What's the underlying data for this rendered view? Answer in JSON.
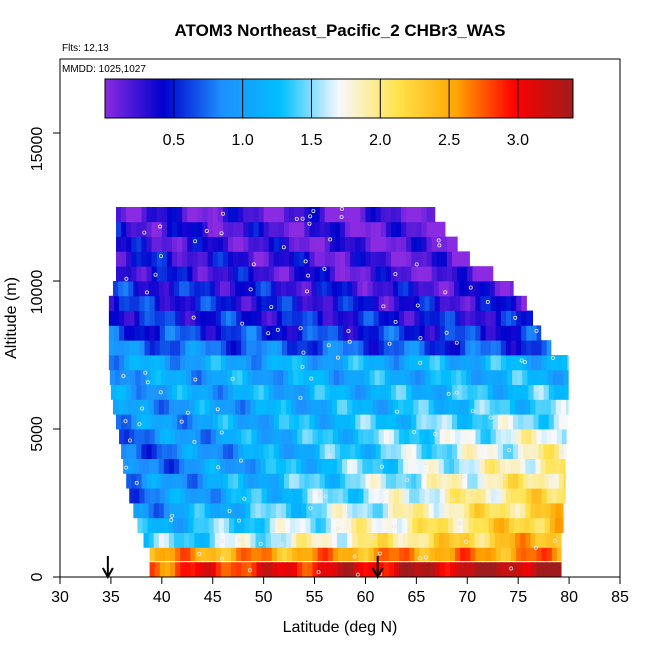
{
  "chart_data": {
    "type": "heatmap",
    "title": "ATOM3 Northeast_Pacific_2 CHBr3_WAS",
    "flights_label": "Flts: 12,13",
    "dates_label": "MMDD: 1025,1027",
    "xlabel": "Latitude (deg N)",
    "ylabel": "Altitude (m)",
    "xlim": [
      30,
      85
    ],
    "ylim": [
      0,
      17500
    ],
    "x_ticks": [
      "30",
      "35",
      "40",
      "45",
      "50",
      "55",
      "60",
      "65",
      "70",
      "75",
      "80",
      "85"
    ],
    "y_ticks": [
      "0",
      "5000",
      "10000",
      "15000"
    ],
    "colorbar": {
      "range": [
        0,
        3.4
      ],
      "ticks": [
        "0.5",
        "1.0",
        "1.5",
        "2.0",
        "2.5",
        "3.0"
      ],
      "colors": [
        "#8a2be2",
        "#0000cd",
        "#1e90ff",
        "#00bfff",
        "#f8f8ff",
        "#ffe34d",
        "#ffa500",
        "#ff0000",
        "#a01c1c"
      ]
    },
    "arrow_latitudes": [
      34.7,
      61.2
    ],
    "layers": [
      {
        "alt": 250,
        "lat_min": 38.8,
        "lat_max": 79.2,
        "left": 2.8,
        "right": 3.4
      },
      {
        "alt": 800,
        "lat_min": 38.8,
        "lat_max": 79.2,
        "left": 2.5,
        "right": 2.6
      },
      {
        "alt": 1250,
        "lat_min": 38.2,
        "lat_max": 79.2,
        "left": 1.3,
        "right": 2.5
      },
      {
        "alt": 1750,
        "lat_min": 37.6,
        "lat_max": 79.4,
        "left": 1.1,
        "right": 2.4
      },
      {
        "alt": 2250,
        "lat_min": 37.2,
        "lat_max": 79.4,
        "left": 0.9,
        "right": 2.3
      },
      {
        "alt": 2750,
        "lat_min": 36.8,
        "lat_max": 79.6,
        "left": 0.8,
        "right": 2.2
      },
      {
        "alt": 3250,
        "lat_min": 36.5,
        "lat_max": 79.6,
        "left": 0.8,
        "right": 2.1
      },
      {
        "alt": 3750,
        "lat_min": 36.2,
        "lat_max": 79.6,
        "left": 0.7,
        "right": 2.0
      },
      {
        "alt": 4250,
        "lat_min": 36.0,
        "lat_max": 79.7,
        "left": 0.7,
        "right": 1.9
      },
      {
        "alt": 4750,
        "lat_min": 35.8,
        "lat_max": 79.7,
        "left": 0.8,
        "right": 1.8
      },
      {
        "alt": 5250,
        "lat_min": 35.5,
        "lat_max": 79.8,
        "left": 0.9,
        "right": 1.6
      },
      {
        "alt": 5750,
        "lat_min": 35.2,
        "lat_max": 79.9,
        "left": 0.9,
        "right": 1.4
      },
      {
        "alt": 6250,
        "lat_min": 35.0,
        "lat_max": 79.9,
        "left": 1.0,
        "right": 1.3
      },
      {
        "alt": 6750,
        "lat_min": 34.9,
        "lat_max": 79.9,
        "left": 1.0,
        "right": 1.2
      },
      {
        "alt": 7250,
        "lat_min": 34.8,
        "lat_max": 79.9,
        "left": 1.0,
        "right": 1.2
      },
      {
        "alt": 7750,
        "lat_min": 34.8,
        "lat_max": 78.2,
        "left": 0.8,
        "right": 0.6
      },
      {
        "alt": 8250,
        "lat_min": 34.8,
        "lat_max": 77.2,
        "left": 0.6,
        "right": 0.5
      },
      {
        "alt": 8750,
        "lat_min": 34.8,
        "lat_max": 76.4,
        "left": 0.5,
        "right": 0.4
      },
      {
        "alt": 9250,
        "lat_min": 34.8,
        "lat_max": 75.8,
        "left": 0.5,
        "right": 0.3
      },
      {
        "alt": 9750,
        "lat_min": 35.2,
        "lat_max": 74.5,
        "left": 0.5,
        "right": 0.2
      },
      {
        "alt": 10250,
        "lat_min": 35.5,
        "lat_max": 72.5,
        "left": 0.4,
        "right": 0.1
      },
      {
        "alt": 10750,
        "lat_min": 35.5,
        "lat_max": 70.2,
        "left": 0.4,
        "right": 0.1
      },
      {
        "alt": 11250,
        "lat_min": 35.5,
        "lat_max": 69.0,
        "left": 0.3,
        "right": 0.1
      },
      {
        "alt": 11750,
        "lat_min": 35.5,
        "lat_max": 67.8,
        "left": 0.3,
        "right": 0.1
      },
      {
        "alt": 12250,
        "lat_min": 35.5,
        "lat_max": 66.8,
        "left": 0.2,
        "right": 0.1
      }
    ]
  }
}
